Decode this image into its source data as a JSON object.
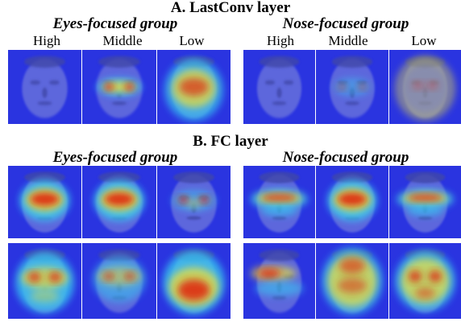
{
  "section_a": {
    "title": "A. LastConv layer",
    "groups": [
      {
        "title": "Eyes-focused group",
        "columns": [
          "High",
          "Middle",
          "Low"
        ]
      },
      {
        "title": "Nose-focused group",
        "columns": [
          "High",
          "Middle",
          "Low"
        ]
      }
    ]
  },
  "section_b": {
    "title": "B. FC layer",
    "groups": [
      {
        "title": "Eyes-focused group"
      },
      {
        "title": "Nose-focused group"
      }
    ]
  },
  "heatmap_colors": {
    "background": "#2a34e0",
    "skin": "#6670dc",
    "feature": "#3f46a8",
    "cool": "#38c8f0",
    "warm": "#e8e040",
    "hot": "#e02010"
  }
}
